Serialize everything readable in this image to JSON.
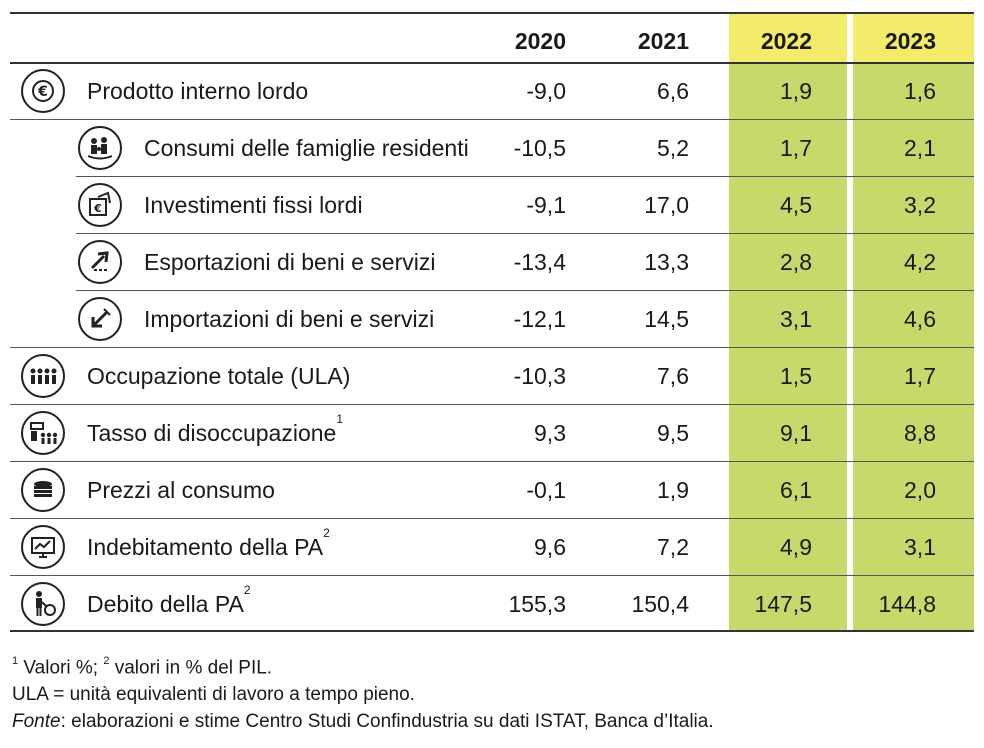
{
  "header": {
    "years": [
      "2020",
      "2021",
      "2022",
      "2023"
    ]
  },
  "colors": {
    "highlight_header": "#f3ec6a",
    "highlight_body": "#c8d86a"
  },
  "rows": [
    {
      "icon": "euro-icon",
      "label": "Prodotto interno lordo",
      "sup": "",
      "values": [
        "-9,0",
        "6,6",
        "1,9",
        "1,6"
      ]
    },
    {
      "icon": "family-icon",
      "label": "Consumi delle famiglie residenti",
      "sup": "",
      "values": [
        "-10,5",
        "5,2",
        "1,7",
        "2,1"
      ]
    },
    {
      "icon": "investment-icon",
      "label": "Investimenti fissi lordi",
      "sup": "",
      "values": [
        "-9,1",
        "17,0",
        "4,5",
        "3,2"
      ]
    },
    {
      "icon": "export-icon",
      "label": "Esportazioni di beni e servizi",
      "sup": "",
      "values": [
        "-13,4",
        "13,3",
        "2,8",
        "4,2"
      ]
    },
    {
      "icon": "import-icon",
      "label": "Importazioni di beni e servizi",
      "sup": "",
      "values": [
        "-12,1",
        "14,5",
        "3,1",
        "4,6"
      ]
    },
    {
      "icon": "workers-icon",
      "label": "Occupazione totale (ULA)",
      "sup": "",
      "values": [
        "-10,3",
        "7,6",
        "1,5",
        "1,7"
      ]
    },
    {
      "icon": "unemployment-icon",
      "label": "Tasso di disoccupazione",
      "sup": "1",
      "values": [
        "9,3",
        "9,5",
        "9,1",
        "8,8"
      ]
    },
    {
      "icon": "coins-icon",
      "label": "Prezzi al consumo",
      "sup": "",
      "values": [
        "-0,1",
        "1,9",
        "6,1",
        "2,0"
      ]
    },
    {
      "icon": "monitor-chart-icon",
      "label": "Indebitamento della PA",
      "sup": "2",
      "values": [
        "9,6",
        "7,2",
        "4,9",
        "3,1"
      ]
    },
    {
      "icon": "debt-person-icon",
      "label": "Debito della PA",
      "sup": "2",
      "values": [
        "155,3",
        "150,4",
        "147,5",
        "144,8"
      ]
    }
  ],
  "notes": {
    "line1_sup1": "1",
    "line1_a": " Valori %; ",
    "line1_sup2": "2",
    "line1_b": " valori in % del PIL.",
    "line2": "ULA = unità equivalenti di lavoro a tempo pieno.",
    "line3_em": "Fonte",
    "line3_rest": ": elaborazioni e stime Centro Studi Confindustria su dati ISTAT, Banca d’Italia."
  }
}
